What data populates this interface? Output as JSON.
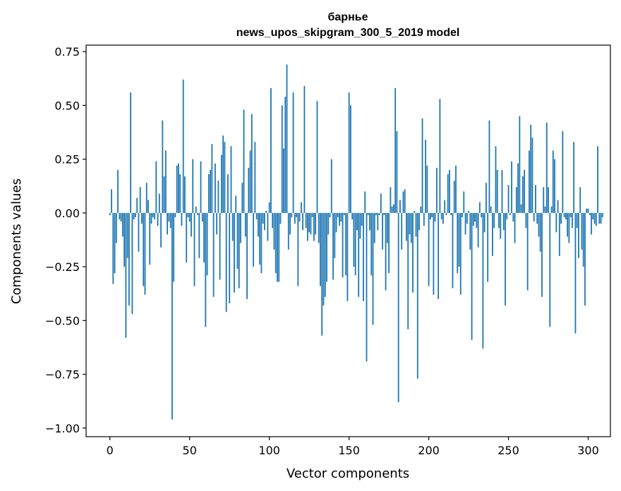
{
  "chart_data": {
    "type": "bar",
    "title": "барнье",
    "subtitle": "news_upos_skipgram_300_5_2019 model",
    "xlabel": "Vector components",
    "ylabel": "Components values",
    "xlim": [
      -14.95,
      313.95
    ],
    "ylim": [
      -1.04,
      0.78
    ],
    "xticks": [
      0,
      50,
      100,
      150,
      200,
      250,
      300
    ],
    "xtick_labels": [
      "0",
      "50",
      "100",
      "150",
      "200",
      "250",
      "300"
    ],
    "yticks": [
      0.75,
      0.5,
      0.25,
      0.0,
      -0.25,
      -0.5,
      -0.75,
      -1.0
    ],
    "ytick_labels": [
      "0.75",
      "0.50",
      "0.25",
      "0.00",
      "−0.25",
      "−0.50",
      "−0.75",
      "−1.00"
    ],
    "bar_color": "#1f77b4",
    "grid": false,
    "values": [
      -0.01,
      0.11,
      -0.33,
      -0.28,
      -0.14,
      0.2,
      -0.03,
      -0.04,
      -0.11,
      -0.25,
      -0.58,
      -0.21,
      -0.43,
      0.56,
      -0.47,
      -0.03,
      -0.02,
      0.07,
      -0.18,
      0.12,
      -0.05,
      -0.34,
      -0.38,
      0.14,
      0.06,
      -0.24,
      -0.05,
      -0.02,
      -0.03,
      0.24,
      -0.06,
      0.09,
      -0.16,
      0.43,
      0.17,
      0.29,
      -0.1,
      -0.04,
      -0.07,
      -0.96,
      -0.32,
      -0.02,
      0.22,
      0.23,
      0.18,
      -0.06,
      0.62,
      0.17,
      -0.23,
      -0.02,
      -0.04,
      -0.11,
      0.25,
      -0.34,
      0.03,
      -0.01,
      -0.21,
      0.24,
      -0.04,
      -0.23,
      -0.53,
      -0.29,
      0.18,
      0.2,
      0.32,
      -0.39,
      0.23,
      -0.1,
      0.15,
      -0.31,
      0.27,
      0.36,
      0.33,
      -0.46,
      0.18,
      -0.42,
      0.31,
      -0.13,
      -0.37,
      0.08,
      -0.26,
      -0.35,
      -0.14,
      0.14,
      0.48,
      -0.11,
      -0.4,
      0.21,
      0.29,
      0.46,
      -0.25,
      0.33,
      -0.03,
      -0.11,
      -0.24,
      -0.28,
      -0.05,
      -0.08,
      0.01,
      -0.13,
      0.05,
      0.58,
      -0.07,
      -0.17,
      -0.28,
      -0.32,
      -0.32,
      -0.05,
      0.5,
      0.3,
      0.54,
      0.69,
      -0.17,
      -0.1,
      -0.02,
      0.56,
      -0.05,
      -0.02,
      -0.34,
      -0.04,
      0.05,
      -0.08,
      0.59,
      -0.07,
      -0.13,
      -0.09,
      -0.1,
      -0.02,
      -0.13,
      -0.1,
      0.52,
      -0.14,
      -0.34,
      -0.57,
      -0.43,
      -0.39,
      -0.32,
      -0.1,
      -0.02,
      0.25,
      -0.31,
      -0.21,
      -0.09,
      -0.02,
      -0.06,
      -0.04,
      -0.3,
      -0.01,
      -0.29,
      -0.41,
      0.56,
      0.5,
      -0.03,
      -0.25,
      -0.29,
      -0.08,
      -0.39,
      -0.12,
      -0.06,
      -0.41,
      0.1,
      -0.69,
      -0.01,
      -0.08,
      -0.29,
      -0.52,
      -0.14,
      -0.01,
      -0.08,
      -0.01,
      0.09,
      -0.17,
      -0.01,
      -0.36,
      -0.14,
      -0.28,
      0.12,
      0.03,
      0.04,
      0.58,
      0.38,
      -0.88,
      0.06,
      -0.17,
      0.1,
      0.11,
      -0.13,
      -0.54,
      -0.1,
      -0.14,
      -0.37,
      0.01,
      -0.11,
      -0.77,
      -0.08,
      0.03,
      0.44,
      -0.06,
      0.34,
      0.22,
      -0.34,
      -0.03,
      -0.02,
      -0.38,
      -0.04,
      0.21,
      -0.4,
      0.53,
      -0.03,
      -0.05,
      0.06,
      -0.01,
      0.18,
      0.2,
      -0.01,
      -0.35,
      0.15,
      0.22,
      -0.28,
      -0.25,
      -0.38,
      -0.02,
      0.1,
      -0.1,
      -0.05,
      0.01,
      -0.17,
      -0.59,
      -0.06,
      -0.04,
      -0.07,
      -0.16,
      0.05,
      -0.02,
      -0.63,
      -0.09,
      0.14,
      -0.32,
      0.43,
      0.03,
      -0.2,
      -0.07,
      0.31,
      0.2,
      -0.07,
      -0.12,
      0.2,
      -0.08,
      -0.43,
      -0.03,
      0.13,
      -0.01,
      0.24,
      -0.04,
      -0.14,
      0.12,
      0.23,
      0.45,
      0.04,
      0.17,
      0.2,
      -0.07,
      -0.36,
      0.29,
      0.41,
      0.35,
      -0.04,
      0.13,
      -0.05,
      -0.11,
      -0.18,
      -0.39,
      0.12,
      0.03,
      0.42,
      0.12,
      -0.53,
      0.03,
      0.29,
      0.25,
      -0.09,
      0.06,
      -0.2,
      -0.05,
      0.38,
      -0.02,
      -0.03,
      -0.11,
      -0.14,
      -0.02,
      -0.07,
      0.33,
      -0.56,
      -0.07,
      -0.21,
      0.12,
      -0.17,
      -0.25,
      -0.43,
      0.02,
      0.02,
      -0.01,
      -0.1,
      -0.03,
      -0.05,
      -0.06,
      0.31,
      -0.05,
      -0.05,
      -0.02
    ]
  }
}
